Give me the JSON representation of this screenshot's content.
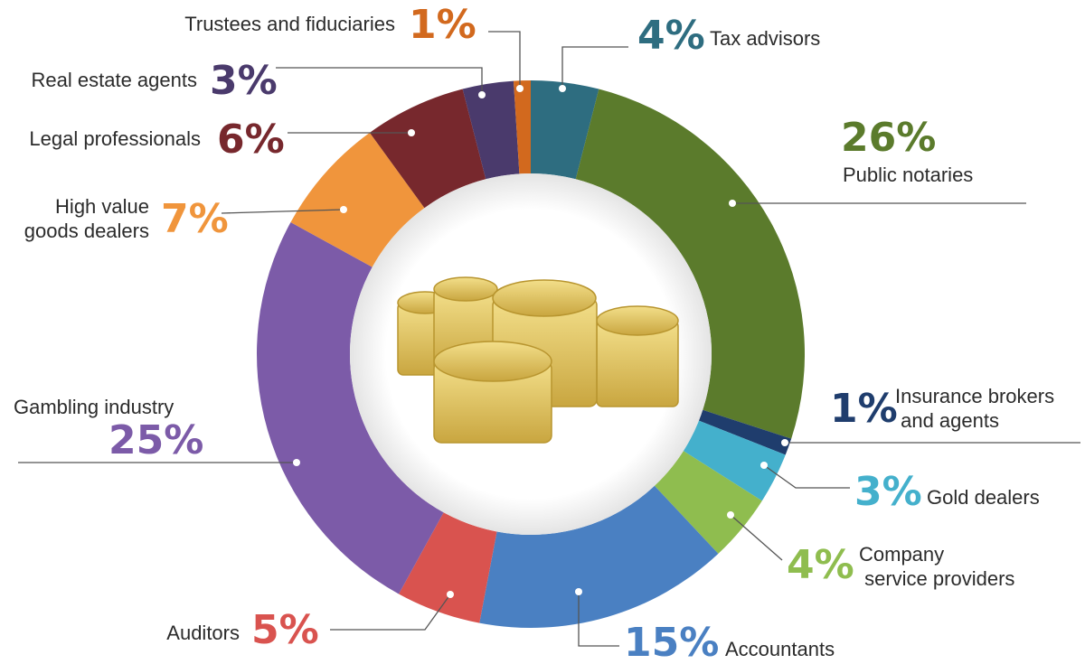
{
  "chart_data": {
    "type": "pie",
    "donut": true,
    "categories": [
      "Tax advisors",
      "Public notaries",
      "Insurance brokers\nand agents",
      "Gold dealers",
      "Company\nservice providers",
      "Accountants",
      "Auditors",
      "Gambling industry",
      "High value\ngoods dealers",
      "Legal professionals",
      "Real estate agents",
      "Trustees and fiduciaries"
    ],
    "values": [
      4,
      26,
      1,
      3,
      4,
      15,
      5,
      25,
      7,
      6,
      3,
      1
    ],
    "value_labels": [
      "4%",
      "26%",
      "1%",
      "3%",
      "4%",
      "15%",
      "5%",
      "25%",
      "7%",
      "6%",
      "3%",
      "1%"
    ],
    "colors": [
      "#2e6d80",
      "#5b7b2c",
      "#1f3d6d",
      "#44b0cc",
      "#8fbd4f",
      "#4a80c2",
      "#d9534f",
      "#7c5ba8",
      "#f0953c",
      "#77282d",
      "#4a3a6c",
      "#d2691e"
    ]
  }
}
